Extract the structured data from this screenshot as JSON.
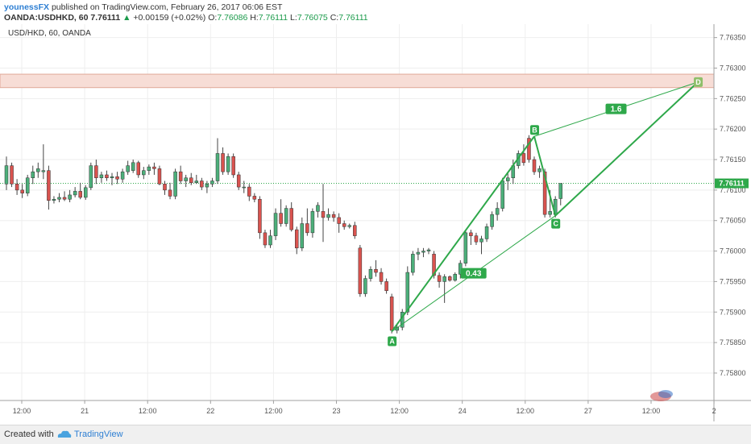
{
  "header": {
    "author": "younessFX",
    "published_text": "published on TradingView.com, February 26, 2017 06:06 EST",
    "symbol": "OANDA:USDHKD, 60",
    "last": "7.76111",
    "change_arrow": "▲",
    "change": "+0.00159 (+0.02%)",
    "o_label": "O:",
    "o_value": "7.76086",
    "h_label": "H:",
    "h_value": "7.76111",
    "l_label": "L:",
    "l_value": "7.76075",
    "c_label": "C:",
    "c_value": "7.76111"
  },
  "footer": {
    "created_with": "Created with",
    "brand": "TradingView",
    "logo_icon": "tradingview-cloud-icon"
  },
  "chart_data": {
    "type": "candlestick",
    "title": "USD/HKD, 60, OANDA",
    "ylim": [
      7.75755,
      7.76372
    ],
    "y_ticks": [
      "7.76350",
      "7.76300",
      "7.76250",
      "7.76200",
      "7.76150",
      "7.76100",
      "7.76050",
      "7.76000",
      "7.75950",
      "7.75900",
      "7.75850",
      "7.75800"
    ],
    "x_ticks": [
      "12:00",
      "21",
      "12:00",
      "22",
      "12:00",
      "23",
      "12:00",
      "24",
      "12:00",
      "27",
      "12:00",
      "2"
    ],
    "last_price_label": "7.76111",
    "colors": {
      "up": "#4caf7a",
      "down": "#d9534f",
      "pattern": "#2ea84a",
      "zone": "#f7ddd6"
    },
    "candles": [
      {
        "o": 7.7611,
        "h": 7.76155,
        "l": 7.761,
        "c": 7.7614
      },
      {
        "o": 7.7614,
        "h": 7.76145,
        "l": 7.76105,
        "c": 7.7611
      },
      {
        "o": 7.7611,
        "h": 7.76118,
        "l": 7.76092,
        "c": 7.761
      },
      {
        "o": 7.761,
        "h": 7.7611,
        "l": 7.76087,
        "c": 7.76095
      },
      {
        "o": 7.76095,
        "h": 7.76125,
        "l": 7.7609,
        "c": 7.7612
      },
      {
        "o": 7.7612,
        "h": 7.7614,
        "l": 7.7611,
        "c": 7.7613
      },
      {
        "o": 7.7613,
        "h": 7.76145,
        "l": 7.7612,
        "c": 7.76135
      },
      {
        "o": 7.7613,
        "h": 7.76175,
        "l": 7.76118,
        "c": 7.76132
      },
      {
        "o": 7.76132,
        "h": 7.7614,
        "l": 7.76068,
        "c": 7.76083
      },
      {
        "o": 7.76083,
        "h": 7.7609,
        "l": 7.76078,
        "c": 7.76085
      },
      {
        "o": 7.76085,
        "h": 7.76095,
        "l": 7.7608,
        "c": 7.76088
      },
      {
        "o": 7.76088,
        "h": 7.76098,
        "l": 7.76082,
        "c": 7.76085
      },
      {
        "o": 7.76085,
        "h": 7.761,
        "l": 7.7608,
        "c": 7.76092
      },
      {
        "o": 7.76092,
        "h": 7.76105,
        "l": 7.76088,
        "c": 7.76098
      },
      {
        "o": 7.76098,
        "h": 7.76112,
        "l": 7.76085,
        "c": 7.76088
      },
      {
        "o": 7.76088,
        "h": 7.76108,
        "l": 7.76084,
        "c": 7.76104
      },
      {
        "o": 7.76104,
        "h": 7.76145,
        "l": 7.761,
        "c": 7.7614
      },
      {
        "o": 7.7614,
        "h": 7.7615,
        "l": 7.7611,
        "c": 7.7612
      },
      {
        "o": 7.7612,
        "h": 7.7613,
        "l": 7.76112,
        "c": 7.76125
      },
      {
        "o": 7.76125,
        "h": 7.76132,
        "l": 7.76115,
        "c": 7.7612
      },
      {
        "o": 7.7612,
        "h": 7.76128,
        "l": 7.76108,
        "c": 7.76122
      },
      {
        "o": 7.76122,
        "h": 7.7613,
        "l": 7.7611,
        "c": 7.76118
      },
      {
        "o": 7.76118,
        "h": 7.76135,
        "l": 7.76112,
        "c": 7.7613
      },
      {
        "o": 7.7613,
        "h": 7.76148,
        "l": 7.76125,
        "c": 7.7614
      },
      {
        "o": 7.76132,
        "h": 7.7615,
        "l": 7.76128,
        "c": 7.76145
      },
      {
        "o": 7.76145,
        "h": 7.76148,
        "l": 7.7612,
        "c": 7.76125
      },
      {
        "o": 7.76125,
        "h": 7.76138,
        "l": 7.76118,
        "c": 7.76132
      },
      {
        "o": 7.76132,
        "h": 7.76142,
        "l": 7.76125,
        "c": 7.76138
      },
      {
        "o": 7.76138,
        "h": 7.76145,
        "l": 7.76125,
        "c": 7.76135
      },
      {
        "o": 7.76135,
        "h": 7.7614,
        "l": 7.76108,
        "c": 7.7611
      },
      {
        "o": 7.7611,
        "h": 7.76115,
        "l": 7.76092,
        "c": 7.761
      },
      {
        "o": 7.761,
        "h": 7.76112,
        "l": 7.76085,
        "c": 7.7609
      },
      {
        "o": 7.7609,
        "h": 7.76135,
        "l": 7.76085,
        "c": 7.7613
      },
      {
        "o": 7.7613,
        "h": 7.7614,
        "l": 7.7611,
        "c": 7.76115
      },
      {
        "o": 7.76115,
        "h": 7.76125,
        "l": 7.76105,
        "c": 7.7612
      },
      {
        "o": 7.7612,
        "h": 7.76128,
        "l": 7.76108,
        "c": 7.76112
      },
      {
        "o": 7.76112,
        "h": 7.76125,
        "l": 7.7611,
        "c": 7.76115
      },
      {
        "o": 7.76115,
        "h": 7.7612,
        "l": 7.761,
        "c": 7.76105
      },
      {
        "o": 7.76105,
        "h": 7.76115,
        "l": 7.76095,
        "c": 7.7611
      },
      {
        "o": 7.7611,
        "h": 7.7612,
        "l": 7.76105,
        "c": 7.76115
      },
      {
        "o": 7.76115,
        "h": 7.76185,
        "l": 7.7611,
        "c": 7.7616
      },
      {
        "o": 7.7616,
        "h": 7.7617,
        "l": 7.76125,
        "c": 7.7613
      },
      {
        "o": 7.7613,
        "h": 7.7616,
        "l": 7.76125,
        "c": 7.76155
      },
      {
        "o": 7.76155,
        "h": 7.7616,
        "l": 7.7612,
        "c": 7.76125
      },
      {
        "o": 7.76125,
        "h": 7.7613,
        "l": 7.761,
        "c": 7.76105
      },
      {
        "o": 7.76105,
        "h": 7.76115,
        "l": 7.76095,
        "c": 7.76105
      },
      {
        "o": 7.76105,
        "h": 7.7611,
        "l": 7.76082,
        "c": 7.7609
      },
      {
        "o": 7.7609,
        "h": 7.76095,
        "l": 7.7608,
        "c": 7.76085
      },
      {
        "o": 7.76085,
        "h": 7.7609,
        "l": 7.7602,
        "c": 7.7603
      },
      {
        "o": 7.7603,
        "h": 7.76035,
        "l": 7.76005,
        "c": 7.7601
      },
      {
        "o": 7.7601,
        "h": 7.76035,
        "l": 7.76005,
        "c": 7.76025
      },
      {
        "o": 7.76025,
        "h": 7.7607,
        "l": 7.76018,
        "c": 7.76062
      },
      {
        "o": 7.76062,
        "h": 7.76085,
        "l": 7.7604,
        "c": 7.76045
      },
      {
        "o": 7.76045,
        "h": 7.76075,
        "l": 7.7604,
        "c": 7.7607
      },
      {
        "o": 7.7607,
        "h": 7.7608,
        "l": 7.76032,
        "c": 7.76035
      },
      {
        "o": 7.76035,
        "h": 7.7604,
        "l": 7.75995,
        "c": 7.76005
      },
      {
        "o": 7.76005,
        "h": 7.76055,
        "l": 7.76,
        "c": 7.76045
      },
      {
        "o": 7.76045,
        "h": 7.7607,
        "l": 7.76025,
        "c": 7.7603
      },
      {
        "o": 7.7603,
        "h": 7.7607,
        "l": 7.76022,
        "c": 7.76065
      },
      {
        "o": 7.76065,
        "h": 7.7608,
        "l": 7.76055,
        "c": 7.76075
      },
      {
        "o": 7.76065,
        "h": 7.7611,
        "l": 7.76015,
        "c": 7.76055
      },
      {
        "o": 7.76055,
        "h": 7.7607,
        "l": 7.7605,
        "c": 7.7606
      },
      {
        "o": 7.7606,
        "h": 7.76065,
        "l": 7.76048,
        "c": 7.76055
      },
      {
        "o": 7.76055,
        "h": 7.76062,
        "l": 7.7603,
        "c": 7.76045
      },
      {
        "o": 7.76045,
        "h": 7.7605,
        "l": 7.76035,
        "c": 7.7604
      },
      {
        "o": 7.7604,
        "h": 7.76045,
        "l": 7.76037,
        "c": 7.76042
      },
      {
        "o": 7.76042,
        "h": 7.76048,
        "l": 7.7602,
        "c": 7.76025
      },
      {
        "o": 7.76005,
        "h": 7.7601,
        "l": 7.75925,
        "c": 7.7593
      },
      {
        "o": 7.7593,
        "h": 7.7596,
        "l": 7.75925,
        "c": 7.75955
      },
      {
        "o": 7.75955,
        "h": 7.75975,
        "l": 7.7595,
        "c": 7.7597
      },
      {
        "o": 7.7597,
        "h": 7.75985,
        "l": 7.75958,
        "c": 7.75965
      },
      {
        "o": 7.75965,
        "h": 7.75972,
        "l": 7.75945,
        "c": 7.7595
      },
      {
        "o": 7.7595,
        "h": 7.75955,
        "l": 7.7593,
        "c": 7.75935
      },
      {
        "o": 7.75925,
        "h": 7.7593,
        "l": 7.75865,
        "c": 7.7587
      },
      {
        "o": 7.7587,
        "h": 7.7588,
        "l": 7.75865,
        "c": 7.75875
      },
      {
        "o": 7.75875,
        "h": 7.75905,
        "l": 7.7587,
        "c": 7.759
      },
      {
        "o": 7.759,
        "h": 7.75975,
        "l": 7.75895,
        "c": 7.75965
      },
      {
        "o": 7.75965,
        "h": 7.76,
        "l": 7.7596,
        "c": 7.75995
      },
      {
        "o": 7.75995,
        "h": 7.76005,
        "l": 7.75985,
        "c": 7.75998
      },
      {
        "o": 7.75998,
        "h": 7.76005,
        "l": 7.7599,
        "c": 7.76
      },
      {
        "o": 7.76,
        "h": 7.76005,
        "l": 7.75995,
        "c": 7.76002
      },
      {
        "o": 7.75995,
        "h": 7.76,
        "l": 7.75955,
        "c": 7.7596
      },
      {
        "o": 7.7596,
        "h": 7.75965,
        "l": 7.7594,
        "c": 7.7595
      },
      {
        "o": 7.7595,
        "h": 7.75962,
        "l": 7.75915,
        "c": 7.75958
      },
      {
        "o": 7.75958,
        "h": 7.7596,
        "l": 7.7595,
        "c": 7.75952
      },
      {
        "o": 7.75952,
        "h": 7.75965,
        "l": 7.7595,
        "c": 7.75962
      },
      {
        "o": 7.75962,
        "h": 7.75985,
        "l": 7.75955,
        "c": 7.7598
      },
      {
        "o": 7.7598,
        "h": 7.76035,
        "l": 7.75975,
        "c": 7.7603
      },
      {
        "o": 7.7603,
        "h": 7.76035,
        "l": 7.7601,
        "c": 7.76025
      },
      {
        "o": 7.76025,
        "h": 7.7603,
        "l": 7.7601,
        "c": 7.76015
      },
      {
        "o": 7.76015,
        "h": 7.76025,
        "l": 7.75995,
        "c": 7.7602
      },
      {
        "o": 7.7602,
        "h": 7.76045,
        "l": 7.76015,
        "c": 7.7604
      },
      {
        "o": 7.7604,
        "h": 7.76065,
        "l": 7.76035,
        "c": 7.7606
      },
      {
        "o": 7.7606,
        "h": 7.7608,
        "l": 7.7605,
        "c": 7.7607
      },
      {
        "o": 7.7607,
        "h": 7.7612,
        "l": 7.76065,
        "c": 7.76115
      },
      {
        "o": 7.76115,
        "h": 7.7613,
        "l": 7.761,
        "c": 7.7612
      },
      {
        "o": 7.7612,
        "h": 7.7615,
        "l": 7.7611,
        "c": 7.7614
      },
      {
        "o": 7.7614,
        "h": 7.76165,
        "l": 7.76135,
        "c": 7.7616
      },
      {
        "o": 7.7616,
        "h": 7.76175,
        "l": 7.7614,
        "c": 7.76145
      },
      {
        "o": 7.76185,
        "h": 7.7619,
        "l": 7.76145,
        "c": 7.7615
      },
      {
        "o": 7.7615,
        "h": 7.76155,
        "l": 7.76125,
        "c": 7.7613
      },
      {
        "o": 7.7613,
        "h": 7.7614,
        "l": 7.7612,
        "c": 7.76135
      },
      {
        "o": 7.7613,
        "h": 7.76135,
        "l": 7.76055,
        "c": 7.7606
      },
      {
        "o": 7.7606,
        "h": 7.761,
        "l": 7.76055,
        "c": 7.76065
      },
      {
        "o": 7.7606,
        "h": 7.7609,
        "l": 7.76055,
        "c": 7.76085
      },
      {
        "o": 7.76086,
        "h": 7.76111,
        "l": 7.76075,
        "c": 7.76111
      }
    ],
    "pattern": {
      "points": [
        {
          "label": "A",
          "candle": 73,
          "price": 7.75868
        },
        {
          "label": "B",
          "candle": 100,
          "price": 7.76188
        },
        {
          "label": "C",
          "candle": 104,
          "price": 7.76058
        },
        {
          "label": "D",
          "candle": 131,
          "price": 7.76277
        }
      ],
      "ratios": [
        {
          "label": "0.43",
          "between": [
            "A",
            "C"
          ]
        },
        {
          "label": "1.6",
          "between": [
            "B",
            "D"
          ]
        }
      ]
    },
    "resistance_zone": {
      "from": 7.76268,
      "to": 7.7629
    }
  }
}
